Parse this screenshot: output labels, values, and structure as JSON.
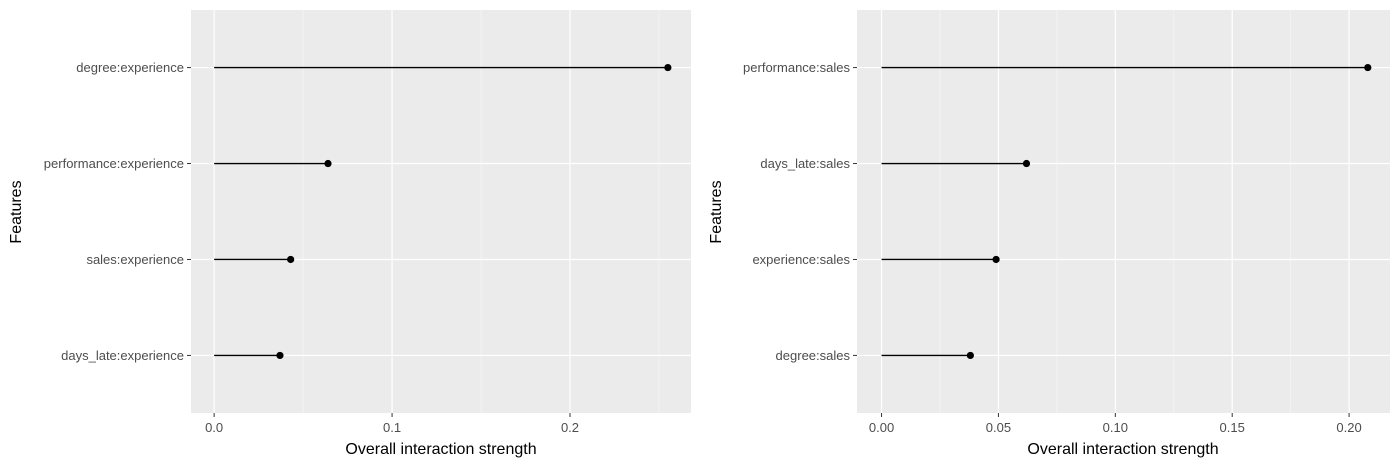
{
  "colors": {
    "panel_background": "#ebebeb",
    "grid_major": "#ffffff",
    "grid_minor": "#f5f5f5",
    "mark": "#000000",
    "tick_text": "#4d4d4d"
  },
  "chart_data": [
    {
      "type": "lollipop",
      "orientation": "horizontal",
      "xlabel": "Overall interaction strength",
      "ylabel": "Features",
      "xlim": [
        -0.013,
        0.268
      ],
      "x_ticks": [
        0.0,
        0.1,
        0.2
      ],
      "x_tick_labels": [
        "0.0",
        "0.1",
        "0.2"
      ],
      "grid": true,
      "categories": [
        "degree:experience",
        "performance:experience",
        "sales:experience",
        "days_late:experience"
      ],
      "values": [
        0.255,
        0.064,
        0.043,
        0.037
      ]
    },
    {
      "type": "lollipop",
      "orientation": "horizontal",
      "xlabel": "Overall interaction strength",
      "ylabel": "Features",
      "xlim": [
        -0.0105,
        0.2175
      ],
      "x_ticks": [
        0.0,
        0.05,
        0.1,
        0.15,
        0.2
      ],
      "x_tick_labels": [
        "0.00",
        "0.05",
        "0.10",
        "0.15",
        "0.20"
      ],
      "grid": true,
      "categories": [
        "performance:sales",
        "days_late:sales",
        "experience:sales",
        "degree:sales"
      ],
      "values": [
        0.208,
        0.062,
        0.049,
        0.038
      ]
    }
  ]
}
